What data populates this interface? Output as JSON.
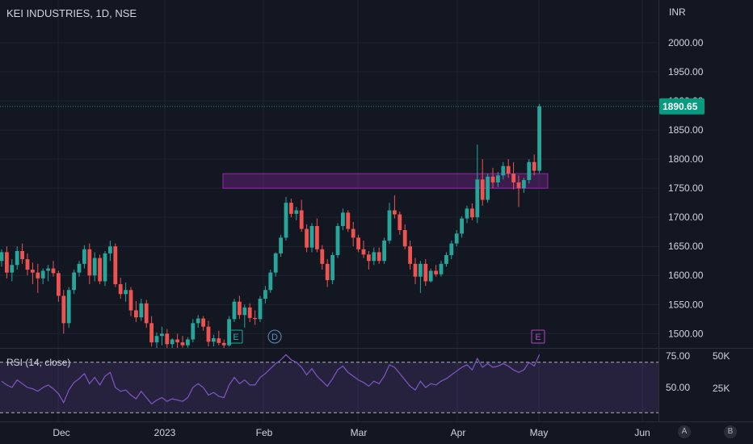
{
  "header": {
    "title": "KEI INDUSTRIES, 1D, NSE",
    "currency": "INR"
  },
  "rsi_panel": {
    "label": "RSI (14, close)",
    "axis_labels": [
      "75.00",
      "50.00"
    ],
    "volume_labels": [
      "50K",
      "25K"
    ]
  },
  "buttons": {
    "auto": "A",
    "log": "B"
  },
  "colors": {
    "background": "#131722",
    "up": "#26a69a",
    "down": "#ef5350",
    "zone": "#9c27b0",
    "rsi_line": "#7e57c2",
    "last_price": "#089981"
  },
  "chart_data": [
    {
      "type": "candlestick",
      "title": "KEI INDUSTRIES, 1D, NSE",
      "y_unit": "INR",
      "ylim": [
        1475,
        2040
      ],
      "y_ticks": [
        "2000.00",
        "1950.00",
        "1900.00",
        "1850.00",
        "1800.00",
        "1750.00",
        "1700.00",
        "1650.00",
        "1600.00",
        "1550.00",
        "1500.00"
      ],
      "x_ticks": [
        "Dec",
        "2023",
        "Feb",
        "Mar",
        "Apr",
        "May",
        "Jun"
      ],
      "last_price_label": "1890.65",
      "resistance_zone": [
        1750,
        1775
      ],
      "events": [
        "E",
        "D",
        "E"
      ],
      "grid": true,
      "candles": [
        [
          1625,
          1645,
          1615,
          1640
        ],
        [
          1640,
          1650,
          1595,
          1605
        ],
        [
          1605,
          1628,
          1590,
          1618
        ],
        [
          1618,
          1650,
          1610,
          1642
        ],
        [
          1642,
          1655,
          1620,
          1628
        ],
        [
          1628,
          1638,
          1600,
          1610
        ],
        [
          1610,
          1622,
          1585,
          1605
        ],
        [
          1605,
          1620,
          1570,
          1595
        ],
        [
          1595,
          1612,
          1585,
          1608
        ],
        [
          1608,
          1618,
          1590,
          1612
        ],
        [
          1612,
          1625,
          1598,
          1604
        ],
        [
          1604,
          1608,
          1555,
          1565
        ],
        [
          1565,
          1575,
          1500,
          1518
        ],
        [
          1518,
          1580,
          1510,
          1575
        ],
        [
          1575,
          1610,
          1568,
          1605
        ],
        [
          1605,
          1625,
          1598,
          1620
        ],
        [
          1620,
          1652,
          1612,
          1645
        ],
        [
          1645,
          1655,
          1585,
          1600
        ],
        [
          1600,
          1640,
          1590,
          1630
        ],
        [
          1630,
          1636,
          1585,
          1590
        ],
        [
          1590,
          1642,
          1582,
          1638
        ],
        [
          1638,
          1660,
          1625,
          1650
        ],
        [
          1650,
          1655,
          1580,
          1585
        ],
        [
          1585,
          1596,
          1560,
          1568
        ],
        [
          1568,
          1588,
          1555,
          1575
        ],
        [
          1575,
          1580,
          1530,
          1540
        ],
        [
          1540,
          1556,
          1520,
          1528
        ],
        [
          1528,
          1560,
          1522,
          1552
        ],
        [
          1552,
          1558,
          1510,
          1518
        ],
        [
          1518,
          1530,
          1478,
          1485
        ],
        [
          1485,
          1502,
          1475,
          1496
        ],
        [
          1496,
          1512,
          1480,
          1500
        ],
        [
          1500,
          1508,
          1475,
          1482
        ],
        [
          1482,
          1492,
          1475,
          1490
        ],
        [
          1490,
          1500,
          1475,
          1485
        ],
        [
          1485,
          1496,
          1476,
          1480
        ],
        [
          1480,
          1494,
          1476,
          1490
        ],
        [
          1490,
          1525,
          1485,
          1518
        ],
        [
          1518,
          1532,
          1510,
          1526
        ],
        [
          1526,
          1530,
          1505,
          1512
        ],
        [
          1512,
          1522,
          1478,
          1486
        ],
        [
          1486,
          1498,
          1478,
          1492
        ],
        [
          1492,
          1505,
          1480,
          1484
        ],
        [
          1484,
          1490,
          1475,
          1480
        ],
        [
          1480,
          1530,
          1478,
          1525
        ],
        [
          1525,
          1560,
          1520,
          1555
        ],
        [
          1555,
          1565,
          1525,
          1532
        ],
        [
          1532,
          1550,
          1510,
          1545
        ],
        [
          1545,
          1552,
          1520,
          1527
        ],
        [
          1527,
          1540,
          1515,
          1525
        ],
        [
          1525,
          1565,
          1520,
          1560
        ],
        [
          1560,
          1582,
          1552,
          1575
        ],
        [
          1575,
          1610,
          1570,
          1605
        ],
        [
          1605,
          1640,
          1598,
          1638
        ],
        [
          1638,
          1670,
          1632,
          1665
        ],
        [
          1665,
          1735,
          1660,
          1725
        ],
        [
          1725,
          1732,
          1700,
          1706
        ],
        [
          1706,
          1718,
          1695,
          1712
        ],
        [
          1712,
          1730,
          1675,
          1680
        ],
        [
          1680,
          1688,
          1640,
          1648
        ],
        [
          1648,
          1690,
          1640,
          1685
        ],
        [
          1685,
          1698,
          1640,
          1645
        ],
        [
          1645,
          1652,
          1610,
          1620
        ],
        [
          1620,
          1628,
          1580,
          1592
        ],
        [
          1592,
          1640,
          1585,
          1635
        ],
        [
          1635,
          1690,
          1630,
          1685
        ],
        [
          1685,
          1715,
          1678,
          1708
        ],
        [
          1708,
          1712,
          1675,
          1680
        ],
        [
          1680,
          1692,
          1650,
          1665
        ],
        [
          1665,
          1670,
          1640,
          1645
        ],
        [
          1645,
          1660,
          1630,
          1636
        ],
        [
          1636,
          1642,
          1610,
          1625
        ],
        [
          1625,
          1648,
          1618,
          1640
        ],
        [
          1640,
          1648,
          1620,
          1625
        ],
        [
          1625,
          1665,
          1620,
          1660
        ],
        [
          1660,
          1725,
          1655,
          1712
        ],
        [
          1712,
          1738,
          1698,
          1705
        ],
        [
          1705,
          1710,
          1670,
          1678
        ],
        [
          1678,
          1688,
          1645,
          1650
        ],
        [
          1650,
          1660,
          1610,
          1620
        ],
        [
          1620,
          1630,
          1585,
          1598
        ],
        [
          1598,
          1625,
          1570,
          1620
        ],
        [
          1620,
          1628,
          1582,
          1590
        ],
        [
          1590,
          1612,
          1588,
          1608
        ],
        [
          1608,
          1618,
          1598,
          1602
        ],
        [
          1602,
          1625,
          1598,
          1620
        ],
        [
          1620,
          1640,
          1615,
          1635
        ],
        [
          1635,
          1660,
          1628,
          1655
        ],
        [
          1655,
          1678,
          1650,
          1672
        ],
        [
          1672,
          1702,
          1665,
          1698
        ],
        [
          1698,
          1720,
          1690,
          1715
        ],
        [
          1715,
          1724,
          1695,
          1700
        ],
        [
          1700,
          1825,
          1690,
          1765
        ],
        [
          1765,
          1800,
          1720,
          1730
        ],
        [
          1730,
          1775,
          1725,
          1770
        ],
        [
          1770,
          1785,
          1750,
          1760
        ],
        [
          1760,
          1778,
          1752,
          1772
        ],
        [
          1772,
          1795,
          1765,
          1788
        ],
        [
          1788,
          1800,
          1768,
          1775
        ],
        [
          1775,
          1795,
          1748,
          1760
        ],
        [
          1760,
          1772,
          1718,
          1750
        ],
        [
          1750,
          1768,
          1742,
          1764
        ],
        [
          1764,
          1800,
          1758,
          1795
        ],
        [
          1795,
          1808,
          1772,
          1780
        ],
        [
          1780,
          1895,
          1776,
          1890.65
        ]
      ]
    },
    {
      "type": "line",
      "name": "RSI (14, close)",
      "ylim": [
        35,
        80
      ],
      "bands": [
        30,
        70
      ],
      "ticks": [
        "75.00",
        "50.00"
      ],
      "values": [
        55,
        52,
        50,
        56,
        53,
        50,
        49,
        47,
        50,
        52,
        49,
        45,
        38,
        48,
        54,
        57,
        61,
        53,
        58,
        52,
        59,
        62,
        50,
        47,
        48,
        44,
        41,
        47,
        42,
        37,
        40,
        42,
        39,
        41,
        40,
        39,
        42,
        50,
        53,
        50,
        44,
        46,
        43,
        42,
        52,
        58,
        53,
        56,
        52,
        52,
        58,
        61,
        65,
        69,
        72,
        76,
        72,
        70,
        66,
        60,
        65,
        59,
        55,
        51,
        57,
        64,
        67,
        62,
        59,
        56,
        54,
        51,
        55,
        53,
        59,
        68,
        66,
        61,
        56,
        51,
        48,
        55,
        50,
        53,
        52,
        55,
        57,
        60,
        63,
        66,
        68,
        64,
        73,
        66,
        69,
        66,
        67,
        69,
        67,
        64,
        62,
        64,
        70,
        67,
        76
      ]
    }
  ]
}
